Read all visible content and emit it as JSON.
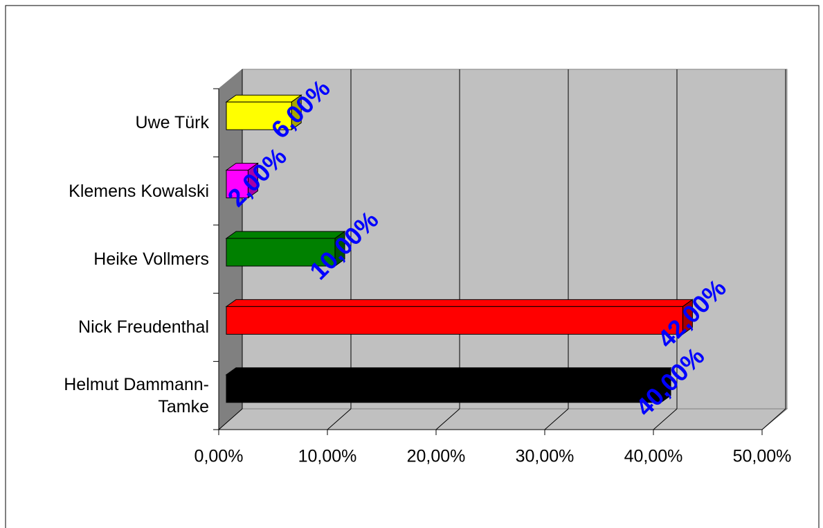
{
  "chart_data": {
    "type": "bar3d_horizontal",
    "categories": [
      "Uwe Türk",
      "Klemens Kowalski",
      "Heike Vollmers",
      "Nick Freudenthal",
      "Helmut Dammann-Tamke"
    ],
    "values": [
      6,
      2,
      10,
      42,
      40
    ],
    "value_labels": [
      "6,00%",
      "2,00%",
      "10,00%",
      "42,00%",
      "40,00%"
    ],
    "colors": [
      "#ffff00",
      "#ff00ff",
      "#008000",
      "#ff0000",
      "#000000"
    ],
    "xlim": [
      0,
      50
    ],
    "xticks": [
      {
        "value": 0,
        "label": "0,00%"
      },
      {
        "value": 10,
        "label": "10,00%"
      },
      {
        "value": 20,
        "label": "20,00%"
      },
      {
        "value": 30,
        "label": "30,00%"
      },
      {
        "value": 40,
        "label": "40,00%"
      },
      {
        "value": 50,
        "label": "50,00%"
      }
    ],
    "grid": true
  }
}
